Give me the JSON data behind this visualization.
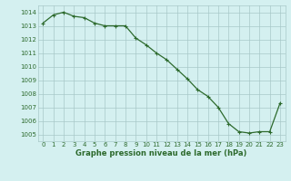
{
  "x": [
    0,
    1,
    2,
    3,
    4,
    5,
    6,
    7,
    8,
    9,
    10,
    11,
    12,
    13,
    14,
    15,
    16,
    17,
    18,
    19,
    20,
    21,
    22,
    23
  ],
  "y": [
    1013.2,
    1013.8,
    1014.0,
    1013.7,
    1013.6,
    1013.2,
    1013.0,
    1013.0,
    1013.0,
    1012.1,
    1011.6,
    1011.0,
    1010.5,
    1009.8,
    1009.1,
    1008.3,
    1007.8,
    1007.0,
    1005.8,
    1005.2,
    1005.1,
    1005.2,
    1005.2,
    1007.3
  ],
  "line_color": "#2d6a2d",
  "marker": "+",
  "marker_size": 3.5,
  "marker_linewidth": 0.8,
  "line_width": 0.9,
  "bg_color": "#d4f0f0",
  "grid_color": "#a8c8c8",
  "xlabel": "Graphe pression niveau de la mer (hPa)",
  "xlabel_color": "#2d6a2d",
  "tick_color": "#2d6a2d",
  "ylim": [
    1004.5,
    1014.5
  ],
  "xlim": [
    -0.5,
    23.5
  ],
  "yticks": [
    1005,
    1006,
    1007,
    1008,
    1009,
    1010,
    1011,
    1012,
    1013,
    1014
  ],
  "xticks": [
    0,
    1,
    2,
    3,
    4,
    5,
    6,
    7,
    8,
    9,
    10,
    11,
    12,
    13,
    14,
    15,
    16,
    17,
    18,
    19,
    20,
    21,
    22,
    23
  ],
  "tick_fontsize": 5.0,
  "xlabel_fontsize": 6.0
}
